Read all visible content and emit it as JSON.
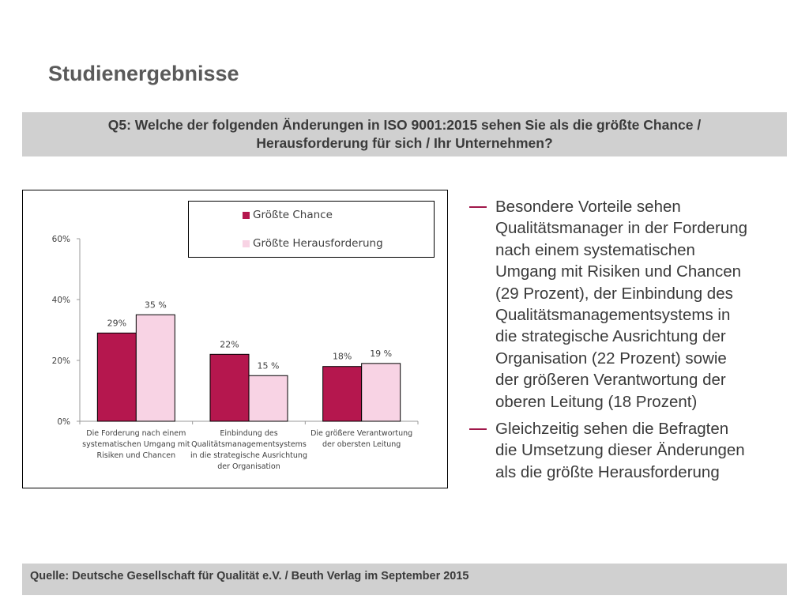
{
  "title": "Studienergebnisse",
  "question": {
    "line1": "Q5: Welche der folgenden Änderungen in ISO 9001:2015 sehen Sie als die größte Chance /",
    "line2": "Herausforderung für sich / Ihr Unternehmen?"
  },
  "chart_data": {
    "type": "bar",
    "categories": [
      [
        "Die Forderung nach einem",
        "systematischen Umgang mit",
        "Risiken und Chancen"
      ],
      [
        "Einbindung des",
        "Qualitätsmanagementsystems",
        "in die strategische Ausrichtung",
        "der Organisation"
      ],
      [
        "Die größere Verantwortung",
        "der obersten Leitung"
      ]
    ],
    "series": [
      {
        "name": "Größte Chance",
        "values": [
          29,
          22,
          18
        ],
        "labels": [
          "29%",
          "22%",
          "18%"
        ],
        "color": "#b5174e"
      },
      {
        "name": "Größte Herausforderung",
        "values": [
          35,
          15,
          19
        ],
        "labels": [
          "35 %",
          "15 %",
          "19 %"
        ],
        "color": "#f8d3e4"
      }
    ],
    "ylim": [
      0,
      60
    ],
    "yticks": [
      0,
      20,
      40,
      60
    ],
    "ytick_labels": [
      "0%",
      "20%",
      "40%",
      "60%"
    ],
    "legend_position": "top-right",
    "grid": false
  },
  "bullets": [
    {
      "lines": [
        "Besondere Vorteile sehen",
        "Qualitätsmanager in der Forderung",
        "nach einem systematischen",
        "Umgang mit Risiken und Chancen",
        "(29 Prozent), der Einbindung des",
        "Qualitätsmanagementsystems in",
        "die strategische Ausrichtung der",
        "Organisation (22 Prozent) sowie",
        "der größeren Verantwortung der",
        "oberen Leitung (18 Prozent)"
      ]
    },
    {
      "lines": [
        "Gleichzeitig sehen die Befragten",
        "die Umsetzung dieser Änderungen",
        "als die größte Herausforderung"
      ]
    }
  ],
  "source": "Quelle: Deutsche Gesellschaft für Qualität e.V. / Beuth Verlag im September  2015"
}
